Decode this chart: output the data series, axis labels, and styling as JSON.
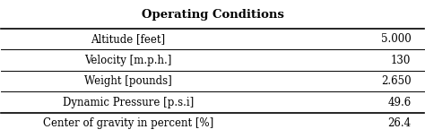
{
  "title": "Operating Conditions",
  "rows": [
    [
      "Altitude [feet]",
      "5.000"
    ],
    [
      "Velocity [m.p.h.]",
      "130"
    ],
    [
      "Weight [pounds]",
      "2.650"
    ],
    [
      "Dynamic Pressure [p.s.i]",
      "49.6"
    ],
    [
      "Center of gravity in percent [%]",
      "26.4"
    ]
  ],
  "background_color": "#ffffff",
  "title_fontsize": 9.5,
  "cell_fontsize": 8.5,
  "figsize": [
    4.74,
    1.54
  ],
  "dpi": 100
}
